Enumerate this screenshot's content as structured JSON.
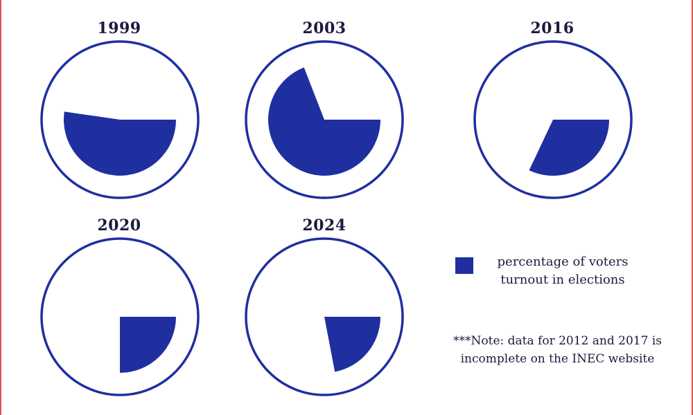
{
  "colors": {
    "fill": "#1f2fa0",
    "outline": "#1f2fa0",
    "text": "#1a1a3e",
    "border": "#d9534f"
  },
  "chart_data": {
    "type": "pie",
    "start_angle": "3 o'clock, clockwise",
    "categories": [
      "1999",
      "2003",
      "2016",
      "2020",
      "2024"
    ],
    "series": [
      {
        "values": [
          52.3,
          69.1,
          32.0,
          25.0,
          22.0
        ]
      }
    ],
    "legend": {
      "label": "percentage of voters turnout in elections",
      "placement": "right"
    },
    "note": "***Note: data for 2012 and 2017 is incomplete on the INEC  website"
  }
}
